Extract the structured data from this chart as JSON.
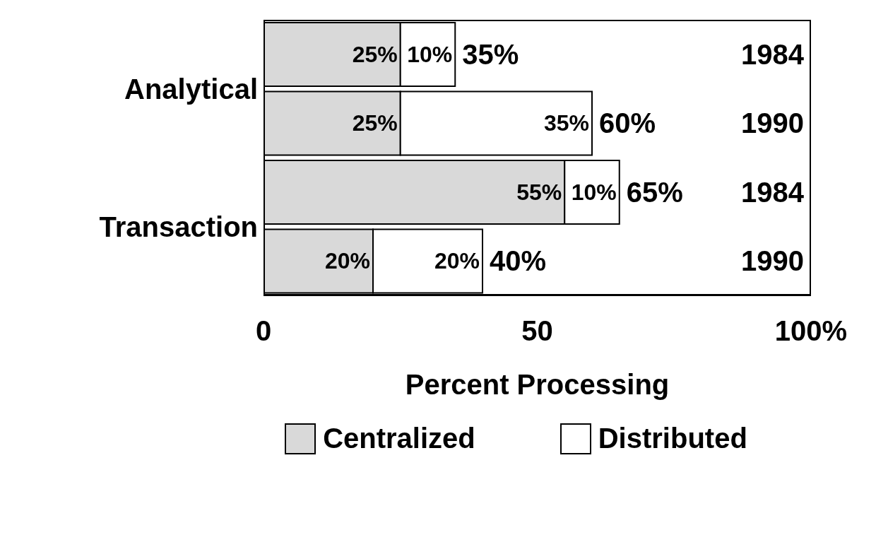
{
  "chart_data": {
    "type": "bar",
    "orientation": "horizontal",
    "stacked": true,
    "categories": [
      "1984",
      "1990",
      "1984",
      "1990"
    ],
    "series": [
      {
        "name": "Centralized",
        "color": "#d9d9d9",
        "values": [
          25,
          25,
          55,
          20
        ],
        "value_labels": [
          "25%",
          "25%",
          "55%",
          "20%"
        ]
      },
      {
        "name": "Distributed",
        "color": "#ffffff",
        "values": [
          10,
          35,
          10,
          20
        ],
        "value_labels": [
          "10%",
          "35%",
          "10%",
          "20%"
        ]
      }
    ],
    "totals": [
      "35%",
      "60%",
      "65%",
      "40%"
    ],
    "xlim": [
      0,
      100
    ],
    "xticks": [
      0,
      50,
      {
        "value": 100,
        "label": "100%"
      }
    ],
    "xlabel": "Percent Processing",
    "annotations": [
      "Analytical",
      "Transaction"
    ],
    "legend": "bottom",
    "grid": false
  }
}
